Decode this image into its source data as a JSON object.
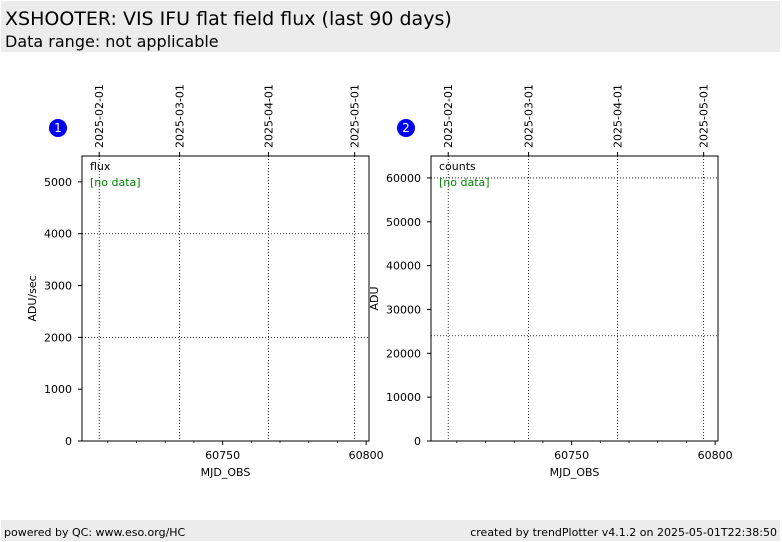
{
  "header": {
    "title": "XSHOOTER: VIS IFU flat field flux (last 90 days)",
    "subtitle": "Data range: not applicable"
  },
  "footer": {
    "left": "powered by QC: www.eso.org/HC",
    "right": "created by trendPlotter v4.1.2 on 2025-05-01T22:38:50"
  },
  "colors": {
    "header_bg": "#ececec",
    "badge": "#0000ee",
    "no_data": "#008000",
    "grid": "#000000"
  },
  "chart_data": [
    {
      "type": "scatter",
      "badge": "1",
      "series_label": "flux",
      "no_data_text": "[no data]",
      "xlabel": "MJD_OBS",
      "ylabel": "ADU/sec",
      "xlim": [
        60701,
        60801
      ],
      "ylim": [
        0,
        5500
      ],
      "x_ticks": [
        60750,
        60800
      ],
      "y_ticks": [
        0,
        1000,
        2000,
        3000,
        4000,
        5000
      ],
      "y_grid": [
        2000,
        4000
      ],
      "top_ticks": [
        {
          "mjd": 60707,
          "label": "2025-02-01"
        },
        {
          "mjd": 60735,
          "label": "2025-03-01"
        },
        {
          "mjd": 60766,
          "label": "2025-04-01"
        },
        {
          "mjd": 60796,
          "label": "2025-05-01"
        }
      ],
      "grid": true,
      "values": []
    },
    {
      "type": "scatter",
      "badge": "2",
      "series_label": "counts",
      "no_data_text": "[no data]",
      "xlabel": "MJD_OBS",
      "ylabel": "ADU",
      "xlim": [
        60701,
        60801
      ],
      "ylim": [
        0,
        65000
      ],
      "x_ticks": [
        60750,
        60800
      ],
      "y_ticks": [
        0,
        10000,
        20000,
        30000,
        40000,
        50000,
        60000
      ],
      "y_grid": [
        24000,
        60000
      ],
      "top_ticks": [
        {
          "mjd": 60707,
          "label": "2025-02-01"
        },
        {
          "mjd": 60735,
          "label": "2025-03-01"
        },
        {
          "mjd": 60766,
          "label": "2025-04-01"
        },
        {
          "mjd": 60796,
          "label": "2025-05-01"
        }
      ],
      "grid": true,
      "values": []
    }
  ]
}
